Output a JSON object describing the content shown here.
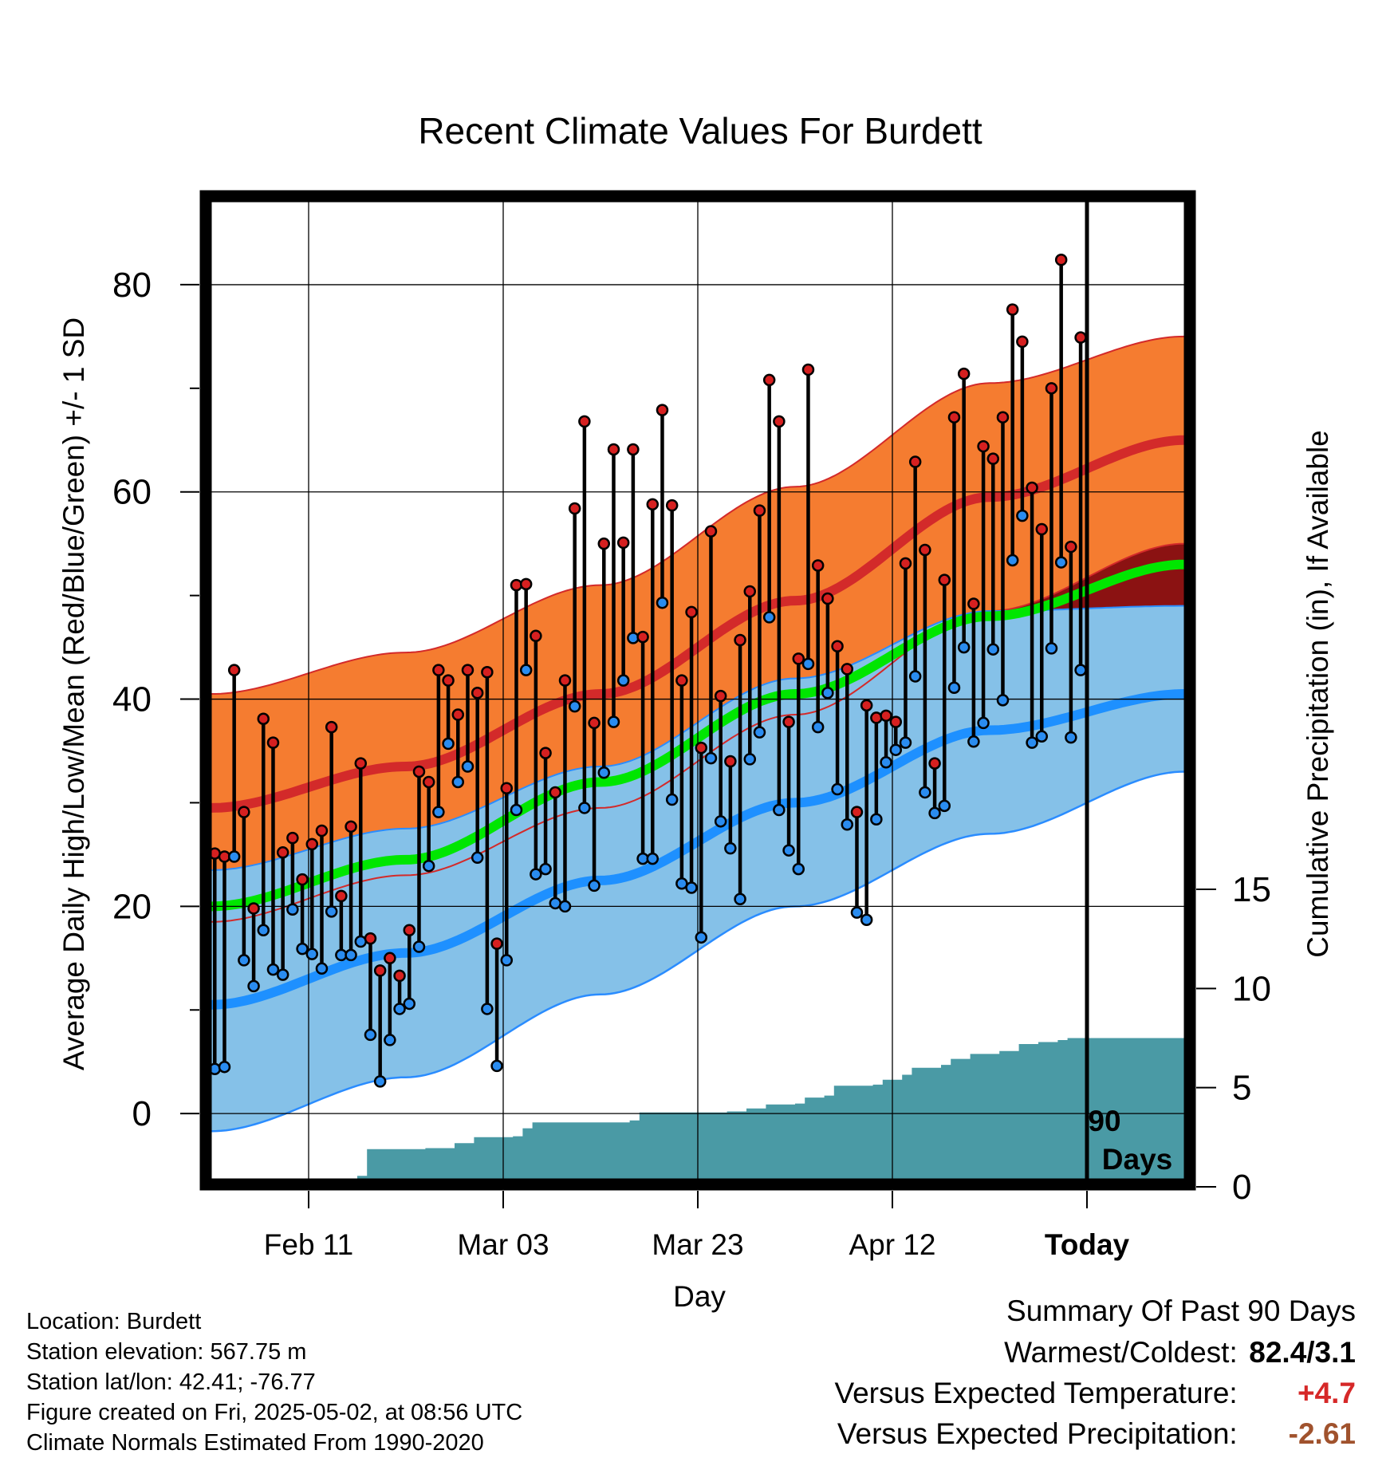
{
  "chart_data": {
    "type": "line",
    "title": "Recent Climate Values For Burdett",
    "xlabel": "Day",
    "ylabel": "Average Daily High/Low/Mean (Red/Blue/Green) +/- 1 SD",
    "y2label": "Cumulative Precipitation (in), If Available",
    "ylim": [
      -6.3,
      88
    ],
    "y2lim": [
      0,
      15
    ],
    "y_ticks": [
      "0",
      "20",
      "40",
      "60",
      "80"
    ],
    "y2_ticks": [
      "0",
      "5",
      "10",
      "15"
    ],
    "x_ticks": [
      "Feb 11",
      "Mar 03",
      "Mar 23",
      "Apr 12",
      "Today"
    ],
    "x_tick_days": [
      10,
      30,
      50,
      70,
      90
    ],
    "days": 100,
    "today_day": 90,
    "today_label_line1": "90",
    "today_label_line2": "Days",
    "grid": true,
    "normal_high_band": [
      [
        0,
        40.5,
        29.5,
        18.5
      ],
      [
        20,
        44.5,
        33.5,
        23
      ],
      [
        40,
        51,
        40.5,
        29.5
      ],
      [
        60,
        60.5,
        49.5,
        38.5
      ],
      [
        80,
        70.5,
        59.5,
        48.5
      ],
      [
        100,
        75,
        65,
        55
      ]
    ],
    "normal_low_band": [
      [
        0,
        23.5,
        10.5,
        -1.7
      ],
      [
        20,
        27.5,
        15.5,
        3.5
      ],
      [
        40,
        33.5,
        22.5,
        11.5
      ],
      [
        60,
        42,
        30,
        20
      ],
      [
        80,
        48.5,
        37,
        27
      ],
      [
        100,
        49,
        40.5,
        33
      ]
    ],
    "normal_mean": [
      [
        0,
        20
      ],
      [
        20,
        24.5
      ],
      [
        40,
        32
      ],
      [
        60,
        40.5
      ],
      [
        80,
        48
      ],
      [
        100,
        53
      ]
    ],
    "daily_high": [
      25.1,
      24.8,
      42.8,
      29.1,
      19.8,
      38.1,
      35.8,
      25.2,
      26.6,
      22.6,
      26.0,
      27.3,
      37.3,
      21.0,
      27.7,
      33.8,
      16.9,
      13.8,
      15.0,
      13.3,
      17.7,
      33.0,
      32.0,
      42.8,
      41.8,
      38.5,
      42.8,
      40.6,
      42.6,
      16.4,
      31.4,
      51.0,
      51.1,
      46.1,
      34.8,
      31.0,
      41.8,
      58.4,
      66.8,
      37.7,
      55.0,
      64.1,
      55.1,
      64.1,
      46.0,
      58.8,
      67.9,
      58.7,
      41.8,
      48.4,
      35.3,
      56.2,
      40.3,
      34.0,
      45.7,
      50.4,
      58.2,
      70.8,
      66.8,
      37.8,
      43.9,
      71.8,
      52.9,
      49.7,
      45.1,
      42.9,
      29.1,
      39.4,
      38.2,
      38.4,
      37.8,
      53.1,
      62.9,
      54.4,
      33.8,
      51.5,
      67.2,
      71.4,
      49.2,
      64.4,
      63.2,
      67.2,
      77.6,
      74.5,
      60.4,
      56.4,
      70.0,
      82.4,
      54.7,
      74.9
    ],
    "daily_low": [
      4.3,
      4.5,
      24.8,
      14.8,
      12.3,
      17.7,
      13.9,
      13.4,
      19.7,
      15.9,
      15.4,
      14.0,
      19.5,
      15.3,
      15.3,
      16.6,
      7.6,
      3.1,
      7.1,
      10.1,
      10.6,
      16.1,
      23.9,
      29.1,
      35.7,
      32.0,
      33.5,
      24.7,
      10.1,
      4.6,
      14.8,
      29.3,
      42.8,
      23.1,
      23.6,
      20.3,
      20.0,
      39.3,
      29.5,
      22.0,
      32.9,
      37.8,
      41.8,
      45.9,
      24.6,
      24.6,
      49.3,
      30.3,
      22.2,
      21.8,
      17.0,
      34.3,
      28.2,
      25.6,
      20.7,
      34.2,
      36.8,
      47.9,
      29.3,
      25.4,
      23.6,
      43.4,
      37.3,
      40.6,
      31.3,
      27.9,
      19.4,
      18.7,
      28.4,
      33.9,
      35.1,
      35.8,
      42.2,
      31.0,
      29.0,
      29.7,
      41.1,
      45.0,
      35.9,
      37.7,
      44.8,
      39.9,
      53.4,
      57.7,
      35.8,
      36.4,
      44.9,
      53.2,
      36.3,
      42.8
    ],
    "cumulative_precip": [
      [
        0,
        0
      ],
      [
        6,
        0
      ],
      [
        7,
        0.1
      ],
      [
        10,
        0.15
      ],
      [
        14,
        0.3
      ],
      [
        15,
        0.55
      ],
      [
        16,
        1.9
      ],
      [
        22,
        1.95
      ],
      [
        25,
        2.2
      ],
      [
        27,
        2.5
      ],
      [
        31,
        2.55
      ],
      [
        32,
        2.95
      ],
      [
        33,
        3.25
      ],
      [
        43,
        3.35
      ],
      [
        44,
        3.75
      ],
      [
        53,
        3.8
      ],
      [
        55,
        3.95
      ],
      [
        57,
        4.15
      ],
      [
        60,
        4.2
      ],
      [
        61,
        4.5
      ],
      [
        63,
        4.6
      ],
      [
        64,
        5.1
      ],
      [
        68,
        5.15
      ],
      [
        69,
        5.4
      ],
      [
        71,
        5.65
      ],
      [
        72,
        6.0
      ],
      [
        75,
        6.15
      ],
      [
        76,
        6.45
      ],
      [
        78,
        6.7
      ],
      [
        81,
        6.85
      ],
      [
        83,
        7.2
      ],
      [
        85,
        7.3
      ],
      [
        87,
        7.4
      ],
      [
        88,
        7.5
      ],
      [
        100,
        7.5
      ]
    ]
  },
  "colors": {
    "high_band": "#f57c30",
    "high_line": "#d32a2a",
    "low_band": "#85c1e8",
    "low_line": "#1e90ff",
    "low_edge": "#2a8cff",
    "overlap": "#8b1212",
    "mean_line": "#00e600",
    "precip": "#4a9aa5",
    "high_dot": "#d62020",
    "low_dot": "#2a8cf0",
    "positive": "#d62828",
    "precip_deficit": "#a0522d"
  },
  "station": {
    "location_line": "Location: Burdett",
    "elevation_line": "Station elevation: 567.75 m",
    "latlon_line": "Station lat/lon: 42.41; -76.77",
    "created_line": "Figure created on Fri, 2025-05-02, at 08:56 UTC",
    "normals_line": "Climate Normals Estimated From 1990-2020"
  },
  "summary": {
    "heading": "Summary Of Past 90 Days",
    "warmest_coldest_label": "Warmest/Coldest:",
    "warmest_coldest_value": "82.4/3.1",
    "temp_label": "Versus Expected Temperature:",
    "temp_value": "+4.7",
    "precip_label": "Versus Expected Precipitation:",
    "precip_value": "-2.61"
  }
}
